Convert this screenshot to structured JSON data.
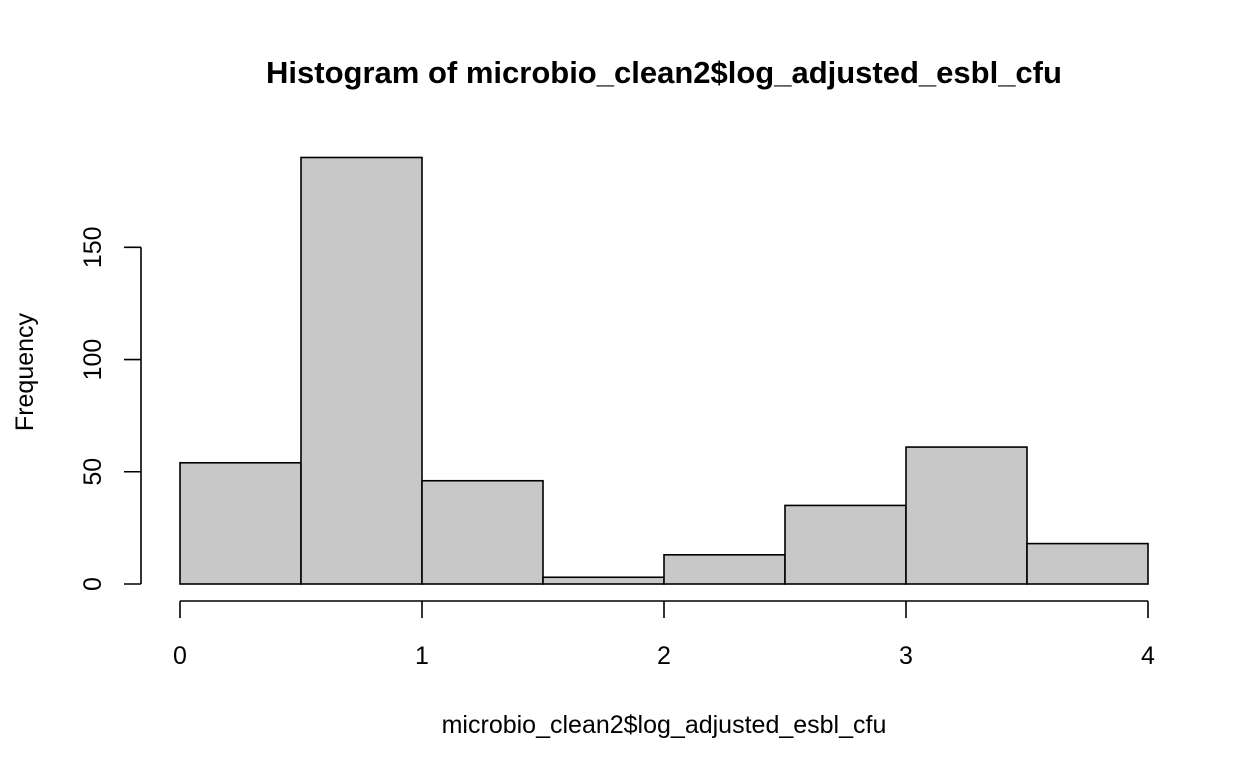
{
  "chart_data": {
    "type": "bar",
    "title": "Histogram of microbio_clean2$log_adjusted_esbl_cfu",
    "xlabel": "microbio_clean2$log_adjusted_esbl_cfu",
    "ylabel": "Frequency",
    "bins": [
      {
        "start": 0.0,
        "end": 0.5,
        "count": 54
      },
      {
        "start": 0.5,
        "end": 1.0,
        "count": 190
      },
      {
        "start": 1.0,
        "end": 1.5,
        "count": 46
      },
      {
        "start": 1.5,
        "end": 2.0,
        "count": 3
      },
      {
        "start": 2.0,
        "end": 2.5,
        "count": 13
      },
      {
        "start": 2.5,
        "end": 3.0,
        "count": 35
      },
      {
        "start": 3.0,
        "end": 3.5,
        "count": 61
      },
      {
        "start": 3.5,
        "end": 4.0,
        "count": 18
      }
    ],
    "xlim": [
      0,
      4
    ],
    "ylim": [
      0,
      190
    ],
    "xticks": [
      0,
      1,
      2,
      3,
      4
    ],
    "xtick_labels": [
      "0",
      "1",
      "2",
      "3",
      "4"
    ],
    "yticks": [
      0,
      50,
      100,
      150
    ],
    "ytick_labels": [
      "0",
      "50",
      "100",
      "150"
    ],
    "grid": false,
    "legend": "none",
    "colors": {
      "bar_fill": "#c8c8c8",
      "bar_stroke": "#000000"
    }
  }
}
